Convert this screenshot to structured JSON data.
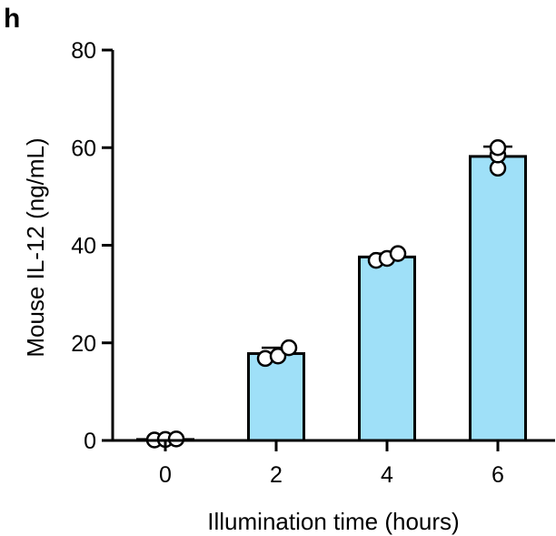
{
  "panel_label": "h",
  "colors": {
    "bar_fill": "#9fe0f8",
    "axis": "#000000",
    "point_fill": "#ffffff"
  },
  "chart_data": {
    "type": "bar",
    "categories": [
      "0",
      "2",
      "4",
      "6"
    ],
    "values": [
      0.2,
      17.8,
      37.6,
      58.2
    ],
    "error": [
      0.3,
      1.2,
      0.7,
      2.0
    ],
    "points": [
      [
        0.1,
        0.2,
        0.3
      ],
      [
        16.8,
        17.3,
        19.0
      ],
      [
        36.9,
        37.3,
        38.3
      ],
      [
        55.8,
        58.5,
        60.0
      ]
    ],
    "xlabel": "Illumination time (hours)",
    "ylabel": "Mouse IL-12 (ng/mL)",
    "ylim": [
      0,
      80
    ],
    "yticks": [
      0,
      20,
      40,
      60,
      80
    ],
    "grid": false
  }
}
